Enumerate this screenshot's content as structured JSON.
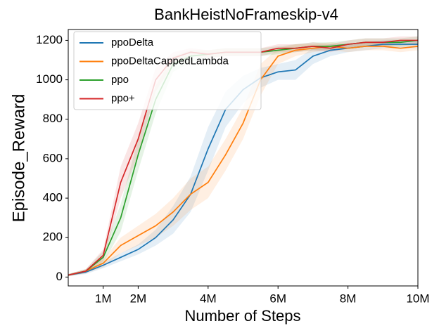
{
  "chart_data": {
    "type": "line",
    "title": "BankHeistNoFrameskip-v4",
    "x_label": "Number of Steps",
    "y_label": "Episode_Reward",
    "x": [
      0,
      500000,
      1000000,
      1500000,
      2000000,
      2500000,
      3000000,
      3500000,
      4000000,
      4500000,
      5000000,
      5500000,
      6000000,
      6500000,
      7000000,
      7500000,
      8000000,
      8500000,
      9000000,
      9500000,
      10000000
    ],
    "xlim": [
      0,
      10000000
    ],
    "xticks": [
      {
        "value": 1000000,
        "label": "1M"
      },
      {
        "value": 2000000,
        "label": "2M"
      },
      {
        "value": 4000000,
        "label": "4M"
      },
      {
        "value": 6000000,
        "label": "6M"
      },
      {
        "value": 8000000,
        "label": "8M"
      },
      {
        "value": 10000000,
        "label": "10M"
      }
    ],
    "ylim": [
      -45,
      1255
    ],
    "yticks": [
      0,
      200,
      400,
      600,
      800,
      1000,
      1200
    ],
    "legend": "upper left",
    "series": [
      {
        "name": "ppoDelta",
        "color": "#1f77b4",
        "values": [
          10,
          25,
          60,
          100,
          140,
          200,
          290,
          420,
          650,
          850,
          950,
          1010,
          1040,
          1050,
          1120,
          1150,
          1160,
          1170,
          1180,
          1180,
          1180
        ],
        "lower": [
          5,
          15,
          45,
          80,
          115,
          160,
          220,
          330,
          540,
          760,
          880,
          960,
          1000,
          1000,
          1080,
          1120,
          1140,
          1150,
          1160,
          1160,
          1160
        ],
        "upper": [
          15,
          35,
          75,
          120,
          165,
          240,
          360,
          510,
          760,
          940,
          1020,
          1060,
          1080,
          1100,
          1160,
          1180,
          1180,
          1190,
          1200,
          1200,
          1200
        ]
      },
      {
        "name": "ppoDeltaCappedLambda",
        "color": "#ff7f0e",
        "values": [
          10,
          30,
          70,
          160,
          210,
          260,
          330,
          420,
          480,
          620,
          780,
          1000,
          1120,
          1150,
          1160,
          1170,
          1160,
          1170,
          1170,
          1160,
          1170
        ],
        "lower": [
          5,
          20,
          50,
          120,
          160,
          200,
          260,
          340,
          400,
          540,
          700,
          920,
          1080,
          1120,
          1140,
          1150,
          1140,
          1150,
          1150,
          1140,
          1150
        ],
        "upper": [
          15,
          40,
          90,
          200,
          260,
          320,
          400,
          500,
          560,
          700,
          860,
          1080,
          1160,
          1180,
          1180,
          1190,
          1180,
          1190,
          1190,
          1180,
          1190
        ]
      },
      {
        "name": "ppo",
        "color": "#2ca02c",
        "values": [
          10,
          30,
          100,
          300,
          620,
          900,
          1080,
          1120,
          1130,
          1140,
          1140,
          1140,
          1150,
          1160,
          1170,
          1170,
          1180,
          1190,
          1190,
          1190,
          1200
        ],
        "lower": [
          5,
          20,
          70,
          230,
          540,
          830,
          1040,
          1090,
          1110,
          1120,
          1120,
          1120,
          1130,
          1140,
          1150,
          1150,
          1160,
          1170,
          1170,
          1170,
          1180
        ],
        "upper": [
          15,
          40,
          130,
          370,
          700,
          970,
          1120,
          1150,
          1150,
          1160,
          1160,
          1160,
          1170,
          1180,
          1190,
          1190,
          1200,
          1210,
          1210,
          1210,
          1220
        ]
      },
      {
        "name": "ppo+",
        "color": "#d62728",
        "values": [
          10,
          30,
          110,
          480,
          700,
          1000,
          1110,
          1140,
          1130,
          1140,
          1140,
          1140,
          1160,
          1160,
          1170,
          1160,
          1180,
          1190,
          1190,
          1200,
          1200
        ],
        "lower": [
          5,
          20,
          80,
          400,
          620,
          940,
          1080,
          1120,
          1110,
          1120,
          1120,
          1120,
          1140,
          1140,
          1150,
          1140,
          1160,
          1170,
          1170,
          1180,
          1180
        ],
        "upper": [
          15,
          40,
          140,
          560,
          780,
          1060,
          1140,
          1160,
          1150,
          1160,
          1160,
          1160,
          1180,
          1180,
          1190,
          1180,
          1200,
          1210,
          1210,
          1220,
          1220
        ]
      }
    ]
  }
}
